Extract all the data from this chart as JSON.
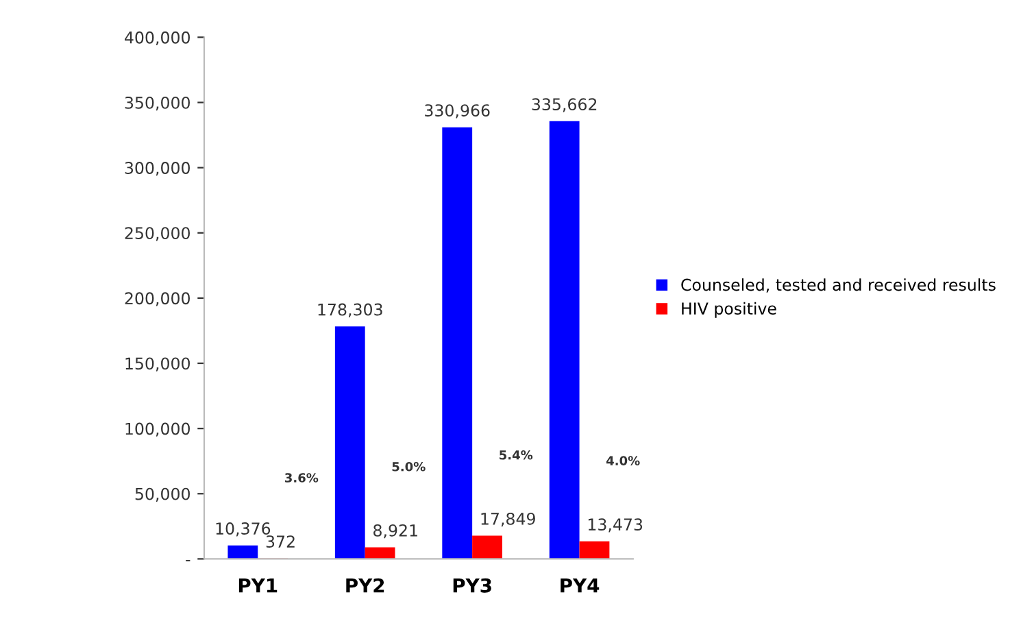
{
  "chart_data": {
    "type": "bar",
    "categories": [
      "PY1",
      "PY2",
      "PY3",
      "PY4"
    ],
    "series": [
      {
        "name": "Counseled, tested and received results",
        "color": "#0000ff",
        "values": [
          10376,
          178303,
          330966,
          335662
        ],
        "value_labels": [
          "10,376",
          "178,303",
          "330,966",
          "335,662"
        ]
      },
      {
        "name": "HIV positive",
        "color": "#ff0000",
        "values": [
          372,
          8921,
          17849,
          13473
        ],
        "value_labels": [
          "372",
          "8,921",
          "17,849",
          "13,473"
        ]
      }
    ],
    "ylim": [
      0,
      400000
    ],
    "yticks": [
      {
        "value": 0,
        "label": "-"
      },
      {
        "value": 50000,
        "label": "50,000"
      },
      {
        "value": 100000,
        "label": "100,000"
      },
      {
        "value": 150000,
        "label": "150,000"
      },
      {
        "value": 200000,
        "label": "200,000"
      },
      {
        "value": 250000,
        "label": "250,000"
      },
      {
        "value": 300000,
        "label": "300,000"
      },
      {
        "value": 350000,
        "label": "350,000"
      },
      {
        "value": 400000,
        "label": "400,000"
      }
    ],
    "annotations": [
      "3.6%",
      "5.0%",
      "5.4%",
      "4.0%"
    ],
    "grid": false,
    "legend": "right"
  }
}
